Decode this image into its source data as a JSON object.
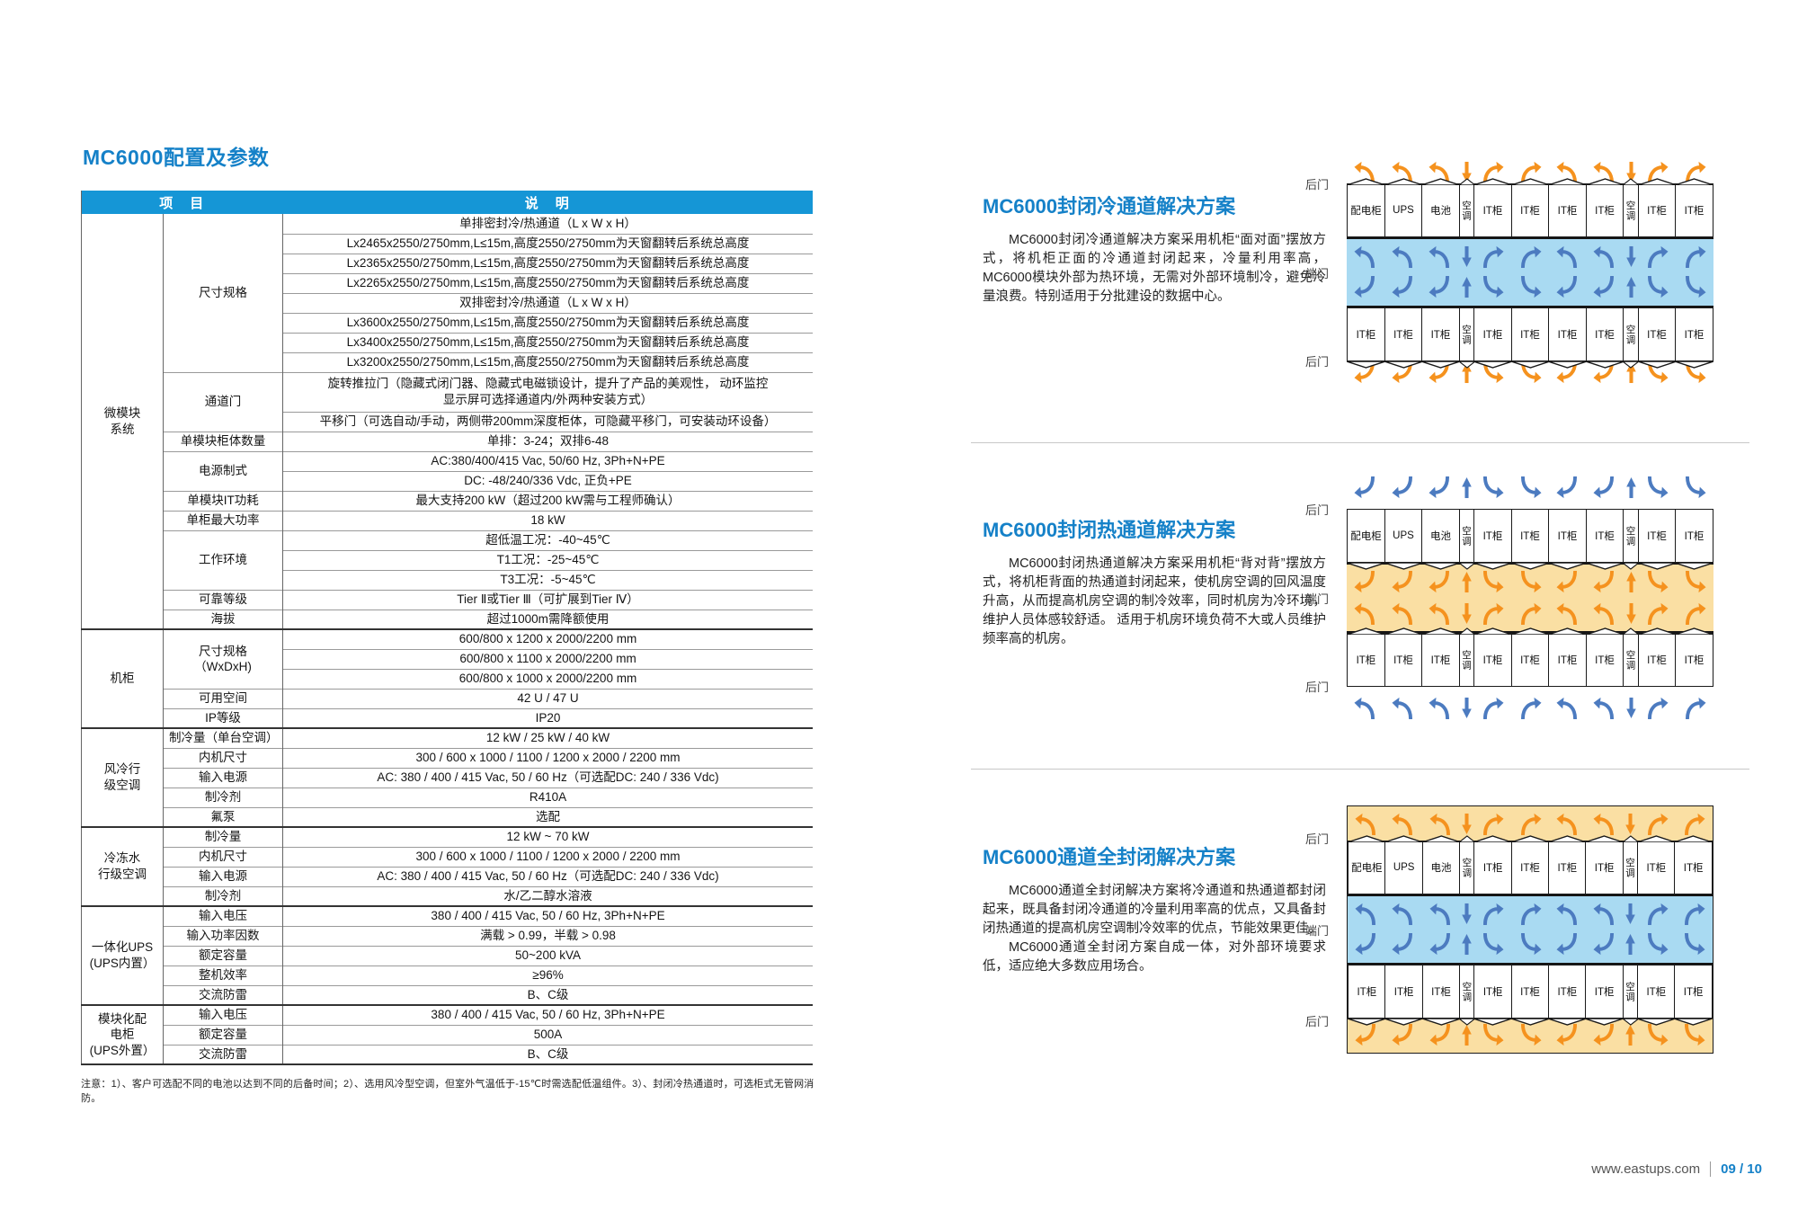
{
  "colors": {
    "header_blue": "#1596D6",
    "title_blue": "#1581C8",
    "cold_aisle": "#A9DAF2",
    "hot_aisle": "#FADFA3",
    "orange_arrow": "#F5921E",
    "blue_arrow": "#4C7BC0"
  },
  "left": {
    "title": "MC6000配置及参数",
    "table": {
      "header": {
        "item": "项　目",
        "desc": "说　明"
      },
      "sections": [
        {
          "category": [
            "微模块",
            "系统"
          ],
          "groups": [
            {
              "label": [
                "尺寸规格"
              ],
              "rows": [
                "单排密封冷/热通道（L x W x H）",
                "Lx2465x2550/2750mm,L≤15m,高度2550/2750mm为天窗翻转后系统总高度",
                "Lx2365x2550/2750mm,L≤15m,高度2550/2750mm为天窗翻转后系统总高度",
                "Lx2265x2550/2750mm,L≤15m,高度2550/2750mm为天窗翻转后系统总高度",
                "双排密封冷/热通道（L x W x H）",
                "Lx3600x2550/2750mm,L≤15m,高度2550/2750mm为天窗翻转后系统总高度",
                "Lx3400x2550/2750mm,L≤15m,高度2550/2750mm为天窗翻转后系统总高度",
                "Lx3200x2550/2750mm,L≤15m,高度2550/2750mm为天窗翻转后系统总高度"
              ]
            },
            {
              "label": [
                "通道门"
              ],
              "rows": [
                {
                  "text": "旋转推拉门（隐藏式闭门器、隐藏式电磁锁设计，提升了产品的美观性， 动环监控\n显示屏可选择通道内/外两种安装方式）",
                  "lines": 2
                },
                "平移门（可选自动/手动，两侧带200mm深度柜体，可隐藏平移门，可安装动环设备）"
              ]
            },
            {
              "label": [
                "单模块柜体数量"
              ],
              "rows": [
                "单排：3-24；双排6-48"
              ]
            },
            {
              "label": [
                "电源制式"
              ],
              "rows": [
                "AC:380/400/415 Vac, 50/60 Hz, 3Ph+N+PE",
                "DC: -48/240/336 Vdc, 正负+PE"
              ]
            },
            {
              "label": [
                "单模块IT功耗"
              ],
              "rows": [
                "最大支持200 kW（超过200 kW需与工程师确认）"
              ]
            },
            {
              "label": [
                "单柜最大功率"
              ],
              "rows": [
                "18 kW"
              ]
            },
            {
              "label": [
                "工作环境"
              ],
              "rows": [
                "超低温工况：-40~45℃",
                "T1工况：-25~45℃",
                "T3工况：-5~45℃"
              ]
            },
            {
              "label": [
                "可靠等级"
              ],
              "rows": [
                "Tier Ⅱ或Tier Ⅲ（可扩展到Tier Ⅳ）"
              ]
            },
            {
              "label": [
                "海拔"
              ],
              "rows": [
                "超过1000m需降额使用"
              ]
            }
          ]
        },
        {
          "category": [
            "机柜"
          ],
          "groups": [
            {
              "label": [
                "尺寸规格",
                "（WxDxH)"
              ],
              "rows": [
                "600/800 x 1200 x 2000/2200 mm",
                "600/800 x 1100 x 2000/2200 mm",
                "600/800 x 1000 x 2000/2200 mm"
              ]
            },
            {
              "label": [
                "可用空间"
              ],
              "rows": [
                "42 U / 47 U"
              ]
            },
            {
              "label": [
                "IP等级"
              ],
              "rows": [
                "IP20"
              ]
            }
          ]
        },
        {
          "category": [
            "风冷行",
            "级空调"
          ],
          "groups": [
            {
              "label": [
                "制冷量（单台空调）"
              ],
              "rows": [
                "12 kW / 25 kW / 40 kW"
              ]
            },
            {
              "label": [
                "内机尺寸"
              ],
              "rows": [
                "300 / 600 x 1000 / 1100 / 1200 x 2000 / 2200 mm"
              ]
            },
            {
              "label": [
                "输入电源"
              ],
              "rows": [
                "AC: 380 / 400 / 415 Vac, 50 / 60 Hz（可选配DC: 240 / 336 Vdc)"
              ]
            },
            {
              "label": [
                "制冷剂"
              ],
              "rows": [
                "R410A"
              ]
            },
            {
              "label": [
                "氟泵"
              ],
              "rows": [
                "选配"
              ]
            }
          ]
        },
        {
          "category": [
            "冷冻水",
            "行级空调"
          ],
          "groups": [
            {
              "label": [
                "制冷量"
              ],
              "rows": [
                "12 kW ~ 70 kW"
              ]
            },
            {
              "label": [
                "内机尺寸"
              ],
              "rows": [
                "300 / 600 x 1000 / 1100 / 1200 x 2000 / 2200 mm"
              ]
            },
            {
              "label": [
                "输入电源"
              ],
              "rows": [
                "AC: 380 / 400 / 415 Vac, 50 / 60 Hz（可选配DC: 240 / 336 Vdc)"
              ]
            },
            {
              "label": [
                "制冷剂"
              ],
              "rows": [
                "水/乙二醇水溶液"
              ]
            }
          ]
        },
        {
          "category": [
            "一体化UPS",
            "(UPS内置）"
          ],
          "groups": [
            {
              "label": [
                "输入电压"
              ],
              "rows": [
                "380 / 400 / 415 Vac, 50 / 60 Hz, 3Ph+N+PE"
              ]
            },
            {
              "label": [
                "输入功率因数"
              ],
              "rows": [
                "满载 > 0.99，半载 > 0.98"
              ]
            },
            {
              "label": [
                "额定容量"
              ],
              "rows": [
                "50~200 kVA"
              ]
            },
            {
              "label": [
                "整机效率"
              ],
              "rows": [
                "≥96%"
              ]
            },
            {
              "label": [
                "交流防雷"
              ],
              "rows": [
                "B、C级"
              ]
            }
          ]
        },
        {
          "category": [
            "模块化配",
            "电柜",
            "(UPS外置）"
          ],
          "groups": [
            {
              "label": [
                "输入电压"
              ],
              "rows": [
                "380 / 400 / 415 Vac, 50 / 60 Hz, 3Ph+N+PE"
              ]
            },
            {
              "label": [
                "额定容量"
              ],
              "rows": [
                "500A"
              ]
            },
            {
              "label": [
                "交流防雷"
              ],
              "rows": [
                "B、C级"
              ]
            }
          ]
        }
      ],
      "note": "注意：1）、客户可选配不同的电池以达到不同的后备时间；2）、选用风冷型空调，但室外气温低于-15℃时需选配低温组件。3）、封闭冷热通道时，可选柜式无管网消防。"
    }
  },
  "right": {
    "diagram_labels": {
      "rear_door": "后门",
      "end_door": "端门"
    },
    "cabinets": {
      "ac_label": "空调",
      "top_row": [
        "配电柜",
        "UPS",
        "电池",
        "空调",
        "IT柜",
        "IT柜",
        "IT柜",
        "IT柜",
        "空调",
        "IT柜",
        "IT柜"
      ],
      "bottom_row": [
        "IT柜",
        "IT柜",
        "IT柜",
        "空调",
        "IT柜",
        "IT柜",
        "IT柜",
        "IT柜",
        "空调",
        "IT柜",
        "IT柜"
      ]
    },
    "sections": [
      {
        "title": "MC6000封闭冷通道解决方案",
        "paragraphs": [
          "MC6000封闭冷通道解决方案采用机柜“面对面”摆放方式，将机柜正面的冷通道封闭起来，冷量利用率高， MC6000模块外部为热环境，无需对外部环境制冷，避免冷量浪费。特别适用于分批建设的数据中心。"
        ],
        "diagram": {
          "aisle": "cold",
          "outer_band": false
        }
      },
      {
        "title": "MC6000封闭热通道解决方案",
        "paragraphs": [
          "MC6000封闭热通道解决方案采用机柜“背对背”摆放方式，将机柜背面的热通道封闭起来，使机房空调的回风温度升高，从而提高机房空调的制冷效率，同时机房为冷环境，维护人员体感较舒适。 适用于机房环境负荷不大或人员维护频率高的机房。"
        ],
        "diagram": {
          "aisle": "hot",
          "outer_band": false
        }
      },
      {
        "title": "MC6000通道全封闭解决方案",
        "paragraphs": [
          "MC6000通道全封闭解决方案将冷通道和热通道都封闭起来，既具备封闭冷通道的冷量利用率高的优点，又具备封闭热通道的提高机房空调制冷效率的优点，节能效果更佳。",
          "MC6000通道全封闭方案自成一体，对外部环境要求低，适应绝大多数应用场合。"
        ],
        "diagram": {
          "aisle": "cold",
          "outer_band": true
        }
      }
    ]
  },
  "footer": {
    "url": "www.eastups.com",
    "page": "09 / 10"
  }
}
